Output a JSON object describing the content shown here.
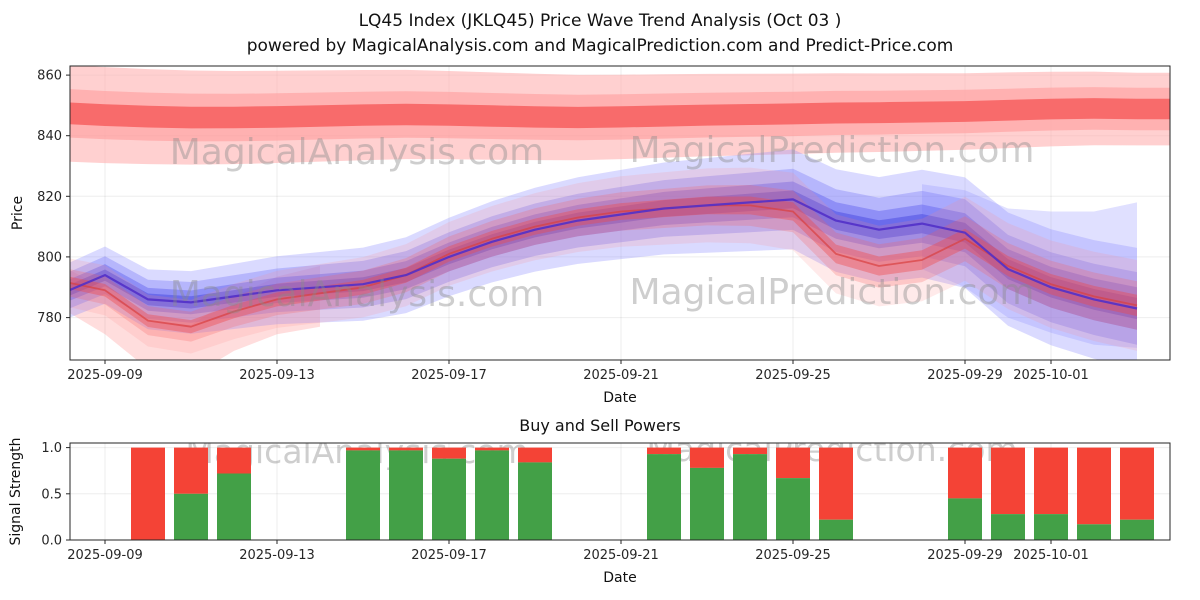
{
  "header": {
    "title": "LQ45 Index  (JKLQ45) Price Wave Trend Analysis (Oct 03 )",
    "subtitle": "powered by MagicalAnalysis.com and MagicalPrediction.com and Predict-Price.com"
  },
  "watermarks": {
    "left": "MagicalAnalysis.com",
    "right": "MagicalPrediction.com"
  },
  "chart_data": [
    {
      "type": "area",
      "name": "price-wave-trend",
      "title": "",
      "xlabel": "Date",
      "ylabel": "Price",
      "ylim": [
        766,
        863
      ],
      "yticks": [
        {
          "v": 780,
          "label": "780"
        },
        {
          "v": 800,
          "label": "800"
        },
        {
          "v": 820,
          "label": "820"
        },
        {
          "v": 840,
          "label": "840"
        },
        {
          "v": 860,
          "label": "860"
        }
      ],
      "xticks": [
        {
          "day": 1,
          "label": "2025-09-09"
        },
        {
          "day": 5,
          "label": "2025-09-13"
        },
        {
          "day": 9,
          "label": "2025-09-17"
        },
        {
          "day": 13,
          "label": "2025-09-21"
        },
        {
          "day": 17,
          "label": "2025-09-25"
        },
        {
          "day": 21,
          "label": "2025-09-29"
        },
        {
          "day": 23,
          "label": "2025-10-01"
        }
      ],
      "series": {
        "blue_center": {
          "start_day": 0,
          "values": [
            788,
            794,
            786,
            785,
            787,
            789,
            790,
            791,
            794,
            800,
            805,
            809,
            812,
            814,
            816,
            817,
            818,
            819,
            812,
            809,
            811,
            808,
            796,
            790,
            786,
            783
          ]
        },
        "red_fan": {
          "start_day": 0,
          "values": [
            792,
            789,
            779,
            777,
            782,
            786,
            788,
            790,
            794,
            801,
            806,
            810,
            813,
            815,
            816,
            817,
            817,
            815,
            801,
            797,
            799,
            806,
            797,
            791,
            787,
            784
          ]
        },
        "red_band": {
          "start_day": 0,
          "values": [
            847.5,
            846.8,
            846.3,
            846,
            846,
            846.2,
            846.5,
            846.8,
            847,
            846.8,
            846.5,
            846.2,
            846,
            846.2,
            846.5,
            846.8,
            847,
            847.2,
            847.5,
            847.6,
            847.8,
            848,
            848.4,
            848.8,
            849,
            848.8
          ]
        },
        "red_left_dip": {
          "start_day": 0,
          "values": [
            790,
            782,
            771,
            769,
            778,
            784,
            787
          ]
        },
        "blue_right_drop": {
          "start_day": 20,
          "values": [
            810,
            806,
            798,
            795,
            793,
            794
          ]
        }
      },
      "layers": [
        {
          "series": "red_band",
          "type": "band",
          "hw0": 16,
          "hw1": 12,
          "color": "#ffb0b0",
          "opacity": 0.6,
          "full_width": true
        },
        {
          "series": "red_band",
          "type": "band",
          "hw0": 8,
          "hw1": 7,
          "color": "#ff9898",
          "opacity": 0.55,
          "full_width": true
        },
        {
          "series": "red_band",
          "type": "band",
          "hw0": 3.6,
          "hw1": 3.4,
          "color": "#f86b6b",
          "opacity": 1,
          "full_width": true
        },
        {
          "series": "red_left_dip",
          "type": "band",
          "hw0": 7,
          "hw1": 10,
          "color": "#ff9090",
          "opacity": 0.3
        },
        {
          "series": "blue_right_drop",
          "type": "band",
          "hw0": 14,
          "hw1": 24,
          "color": "#8f8fff",
          "opacity": 0.28
        },
        {
          "series": "blue_center",
          "type": "band",
          "hw0": 9,
          "hw1": 20,
          "color": "#8f8fff",
          "opacity": 0.33
        },
        {
          "series": "blue_center",
          "type": "band",
          "hw0": 6,
          "hw1": 12,
          "color": "#7b7bf7",
          "opacity": 0.38
        },
        {
          "series": "blue_center",
          "type": "band",
          "hw0": 3.5,
          "hw1": 7,
          "color": "#5f5fef",
          "opacity": 0.45
        },
        {
          "series": "blue_center",
          "type": "band",
          "hw0": 1.8,
          "hw1": 3.5,
          "color": "#4848e0",
          "opacity": 0.5
        },
        {
          "series": "red_fan",
          "type": "band",
          "hw0": 8,
          "hw1": 15,
          "color": "#ff8888",
          "opacity": 0.18
        },
        {
          "series": "red_fan",
          "type": "band",
          "hw0": 4.5,
          "hw1": 8,
          "color": "#f96060",
          "opacity": 0.25
        },
        {
          "series": "red_fan",
          "type": "band",
          "hw0": 2,
          "hw1": 3.5,
          "color": "#f04848",
          "opacity": 0.4
        },
        {
          "series": "red_fan",
          "type": "line",
          "color": "#d84040",
          "opacity": 0.7,
          "width": 1.8
        },
        {
          "series": "blue_center",
          "type": "line",
          "color": "#5230c8",
          "opacity": 0.9,
          "width": 2.2
        }
      ]
    },
    {
      "type": "bar",
      "name": "buy-sell-powers",
      "title": "Buy and Sell Powers",
      "xlabel": "Date",
      "ylabel": "Signal Strength",
      "ylim": [
        0,
        1.05
      ],
      "buy_color": "#43a047",
      "sell_color": "#f44336",
      "yticks": [
        {
          "v": 0,
          "label": "0.0"
        },
        {
          "v": 0.5,
          "label": "0.5"
        },
        {
          "v": 1,
          "label": "1.0"
        }
      ],
      "xticks": [
        {
          "day": 1,
          "label": "2025-09-09"
        },
        {
          "day": 5,
          "label": "2025-09-13"
        },
        {
          "day": 9,
          "label": "2025-09-17"
        },
        {
          "day": 13,
          "label": "2025-09-21"
        },
        {
          "day": 17,
          "label": "2025-09-25"
        },
        {
          "day": 21,
          "label": "2025-09-29"
        },
        {
          "day": 23,
          "label": "2025-10-01"
        }
      ],
      "bars": [
        {
          "date": "2025-09-10",
          "day": 2,
          "buy": 0.0,
          "sell": 1.0
        },
        {
          "date": "2025-09-11",
          "day": 3,
          "buy": 0.5,
          "sell": 1.0
        },
        {
          "date": "2025-09-12",
          "day": 4,
          "buy": 0.72,
          "sell": 1.0
        },
        {
          "date": "2025-09-15",
          "day": 7,
          "buy": 0.97,
          "sell": 1.0
        },
        {
          "date": "2025-09-16",
          "day": 8,
          "buy": 0.97,
          "sell": 1.0
        },
        {
          "date": "2025-09-17",
          "day": 9,
          "buy": 0.88,
          "sell": 1.0
        },
        {
          "date": "2025-09-18",
          "day": 10,
          "buy": 0.97,
          "sell": 1.0
        },
        {
          "date": "2025-09-19",
          "day": 11,
          "buy": 0.84,
          "sell": 1.0
        },
        {
          "date": "2025-09-22",
          "day": 14,
          "buy": 0.93,
          "sell": 1.0
        },
        {
          "date": "2025-09-23",
          "day": 15,
          "buy": 0.78,
          "sell": 1.0
        },
        {
          "date": "2025-09-24",
          "day": 16,
          "buy": 0.93,
          "sell": 1.0
        },
        {
          "date": "2025-09-25",
          "day": 17,
          "buy": 0.67,
          "sell": 1.0
        },
        {
          "date": "2025-09-26",
          "day": 18,
          "buy": 0.22,
          "sell": 1.0
        },
        {
          "date": "2025-09-29",
          "day": 21,
          "buy": 0.45,
          "sell": 1.0
        },
        {
          "date": "2025-09-30",
          "day": 22,
          "buy": 0.28,
          "sell": 1.0
        },
        {
          "date": "2025-10-01",
          "day": 23,
          "buy": 0.28,
          "sell": 1.0
        },
        {
          "date": "2025-10-02",
          "day": 24,
          "buy": 0.17,
          "sell": 1.0
        },
        {
          "date": "2025-10-03",
          "day": 25,
          "buy": 0.22,
          "sell": 1.0
        }
      ]
    }
  ]
}
